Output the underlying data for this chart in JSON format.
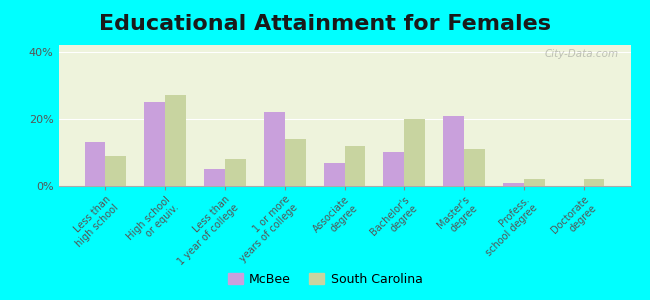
{
  "title": "Educational Attainment for Females",
  "categories": [
    "Less than\nhigh school",
    "High school\nor equiv.",
    "Less than\n1 year of college",
    "1 or more\nyears of college",
    "Associate\ndegree",
    "Bachelor's\ndegree",
    "Master's\ndegree",
    "Profess.\nschool degree",
    "Doctorate\ndegree"
  ],
  "mcbee_values": [
    13,
    25,
    5,
    22,
    7,
    10,
    21,
    1,
    0
  ],
  "sc_values": [
    9,
    27,
    8,
    14,
    12,
    20,
    11,
    2,
    2
  ],
  "mcbee_color": "#c9a0dc",
  "sc_color": "#c8d4a0",
  "background_color": "#00ffff",
  "plot_bg_color": "#eef3dc",
  "ylabel_ticks": [
    "0%",
    "20%",
    "40%"
  ],
  "yticks": [
    0,
    20,
    40
  ],
  "ylim": [
    0,
    42
  ],
  "title_fontsize": 16,
  "tick_fontsize": 7,
  "legend_labels": [
    "McBee",
    "South Carolina"
  ],
  "bar_width": 0.35,
  "watermark": "City-Data.com"
}
